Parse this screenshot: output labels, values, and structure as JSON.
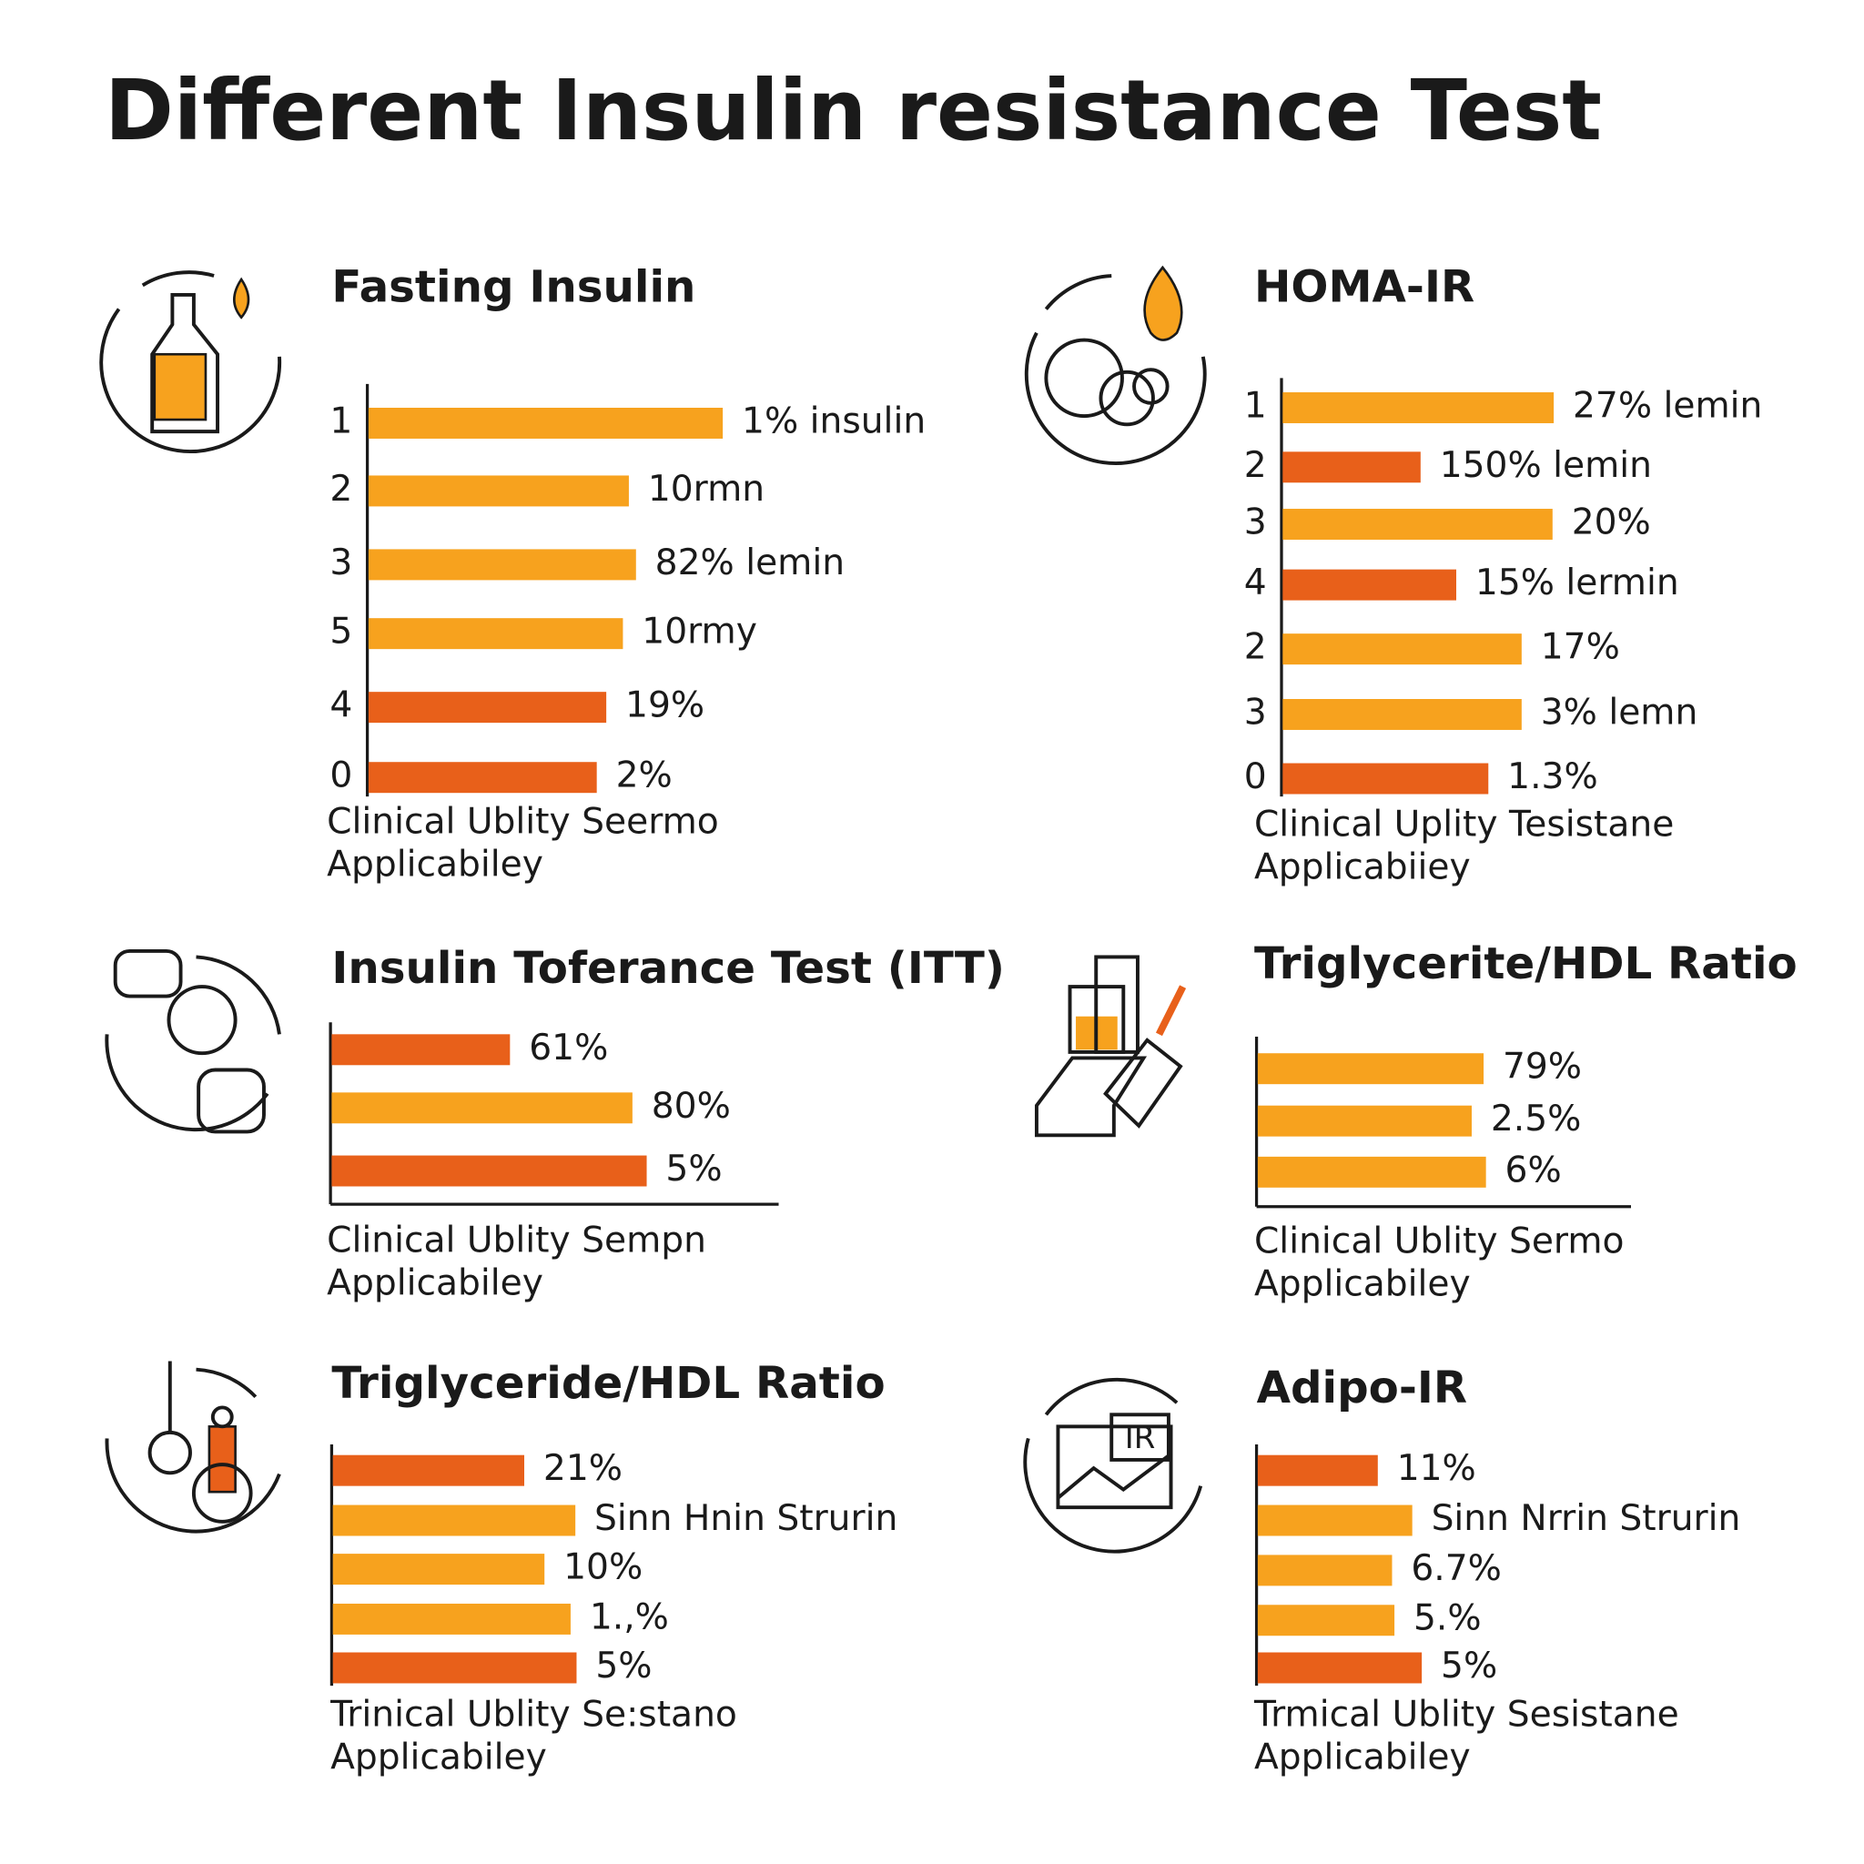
{
  "title": "Different Insulin resistance Test",
  "panels": [
    {
      "title": "Fasting Insulin",
      "rows": [
        {
          "label": "1",
          "text": "1% insulin",
          "color": "#f7a21e"
        },
        {
          "label": "2",
          "text": "10rmn",
          "color": "#f7a21e"
        },
        {
          "label": "3",
          "text": "82% lemin",
          "color": "#f7a21e"
        },
        {
          "label": "5",
          "text": "10rmy",
          "color": "#f7a21e"
        },
        {
          "label": "4",
          "text": "19%",
          "color": "#e8601a"
        },
        {
          "label": "0",
          "text": "2%",
          "color": "#e8601a"
        }
      ],
      "note": [
        "Clinical Ublity Seermo",
        "Applicabiley"
      ]
    },
    {
      "title": "HOMA-IR",
      "rows": [
        {
          "label": "1",
          "text": "27% lemin",
          "color": "#f7a21e"
        },
        {
          "label": "2",
          "text": "150% lemin",
          "color": "#e8601a"
        },
        {
          "label": "3",
          "text": "20%",
          "color": "#f7a21e"
        },
        {
          "label": "4",
          "text": "15% lermin",
          "color": "#e8601a"
        },
        {
          "label": "2",
          "text": "17%",
          "color": "#f7a21e"
        },
        {
          "label": "3",
          "text": "3% lemn",
          "color": "#f7a21e"
        },
        {
          "label": "0",
          "text": "1.3%",
          "color": "#e8601a"
        }
      ],
      "note": [
        "Clinical Uplity Tesistane",
        "Applicabiiey"
      ]
    },
    {
      "title": "Insulin Toferance Test (ITT)",
      "rows": [
        {
          "text": "61%",
          "color": "#e8601a"
        },
        {
          "text": "80%",
          "color": "#f7a21e"
        },
        {
          "text": "5%",
          "color": "#e8601a"
        }
      ],
      "note": [
        "Clinical Ublity Sempn",
        "Applicabiley"
      ]
    },
    {
      "title": "Triglycerite/HDL Ratio",
      "rows": [
        {
          "text": "79%",
          "color": "#f7a21e"
        },
        {
          "text": "2.5%",
          "color": "#f7a21e"
        },
        {
          "text": "6%",
          "color": "#f7a21e"
        }
      ],
      "note": [
        "Clinical Ublity Sermo",
        "Applicabiley"
      ]
    },
    {
      "title": "Triglyceride/HDL Ratio",
      "rows": [
        {
          "text": "21%",
          "color": "#e8601a"
        },
        {
          "text": "Sinn Hnin Strurin",
          "color": "#f7a21e"
        },
        {
          "text": "10%",
          "color": "#f7a21e"
        },
        {
          "text": "1.,%",
          "color": "#f7a21e"
        },
        {
          "text": "5%",
          "color": "#e8601a"
        }
      ],
      "note": [
        "Trinical Ublity Se:stano",
        "Applicabiley"
      ]
    },
    {
      "title": "Adipo-IR",
      "rows": [
        {
          "text": "11%",
          "color": "#e8601a"
        },
        {
          "text": "Sinn Nrrin Strurin",
          "color": "#f7a21e"
        },
        {
          "text": "6.7%",
          "color": "#f7a21e"
        },
        {
          "text": "5.%",
          "color": "#f7a21e"
        },
        {
          "text": "5%",
          "color": "#e8601a"
        }
      ],
      "note": [
        "Trmical Ublity Sesistane",
        "Applicabiley"
      ]
    }
  ]
}
